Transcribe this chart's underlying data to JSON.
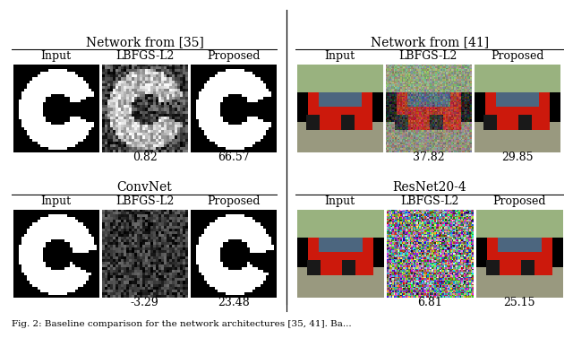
{
  "section_titles_top": [
    "Network from [35]",
    "Network from [41]"
  ],
  "section_titles_bottom": [
    "ConvNet",
    "ResNet20-4"
  ],
  "col_labels": [
    "Input",
    "LBFGS-L2",
    "Proposed"
  ],
  "scores_row1": [
    "0.82",
    "66.57",
    "37.82",
    "29.85"
  ],
  "scores_row2": [
    "-3.29",
    "23.48",
    "6.81",
    "25.15"
  ],
  "caption": "Fig. 2: Baseline comparison for the network architectures [35, 41]. Ba...",
  "bg_color": "#ffffff",
  "text_color": "#000000",
  "divider_color": "#000000",
  "title_fontsize": 10,
  "label_fontsize": 9,
  "score_fontsize": 9,
  "caption_fontsize": 7.5
}
